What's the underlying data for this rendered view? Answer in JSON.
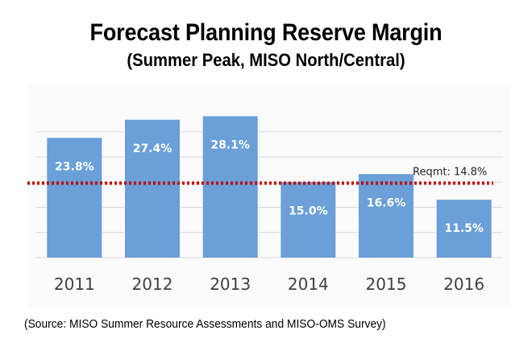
{
  "title": "Forecast Planning Reserve Margin",
  "subtitle": "(Summer Peak, MISO North/Central)",
  "source": "(Source: MISO Summer Resource Assessments and MISO-OMS Survey)",
  "colors": {
    "bar": "#6a9fd8",
    "bar_label": "#ffffff",
    "reference_line": "#c00000",
    "gridline": "#d9d9d9",
    "tick_label": "#404040"
  },
  "chart_data": {
    "type": "bar",
    "title": "Forecast Planning Reserve Margin",
    "subtitle": "(Summer Peak, MISO North/Central)",
    "categories": [
      "2011",
      "2012",
      "2013",
      "2014",
      "2015",
      "2016"
    ],
    "values": [
      23.8,
      27.4,
      28.1,
      15.0,
      16.6,
      11.5
    ],
    "value_labels": [
      "23.8%",
      "27.4%",
      "28.1%",
      "15.0%",
      "16.6%",
      "11.5%"
    ],
    "unit": "%",
    "xlabel": "",
    "ylabel": "",
    "ylim": [
      0,
      30
    ],
    "grid": true,
    "gridlines_at": [
      5,
      10,
      15,
      20,
      25
    ],
    "legend": "none",
    "reference_line": {
      "value": 14.8,
      "label": "Reqmt: 14.8%",
      "style": "dotted"
    }
  }
}
